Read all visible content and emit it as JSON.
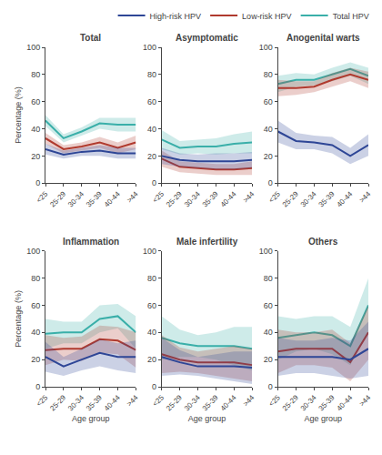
{
  "chart_data": [
    {
      "type": "line",
      "title": "Total",
      "y_label": "Percentage (%)",
      "categories": [
        "<25",
        "25-29",
        "30-34",
        "35-39",
        "40-44",
        ">44"
      ],
      "series": [
        {
          "name": "Total HPV",
          "color": "#3aafa9",
          "values": [
            46,
            33,
            38,
            44,
            43,
            43
          ],
          "lower": [
            42,
            30,
            35,
            40,
            38,
            38
          ],
          "upper": [
            50,
            36,
            41,
            48,
            48,
            48
          ]
        },
        {
          "name": "Low-risk HPV",
          "color": "#b03a2e",
          "values": [
            33,
            25,
            27,
            30,
            26,
            30
          ],
          "lower": [
            29,
            22,
            24,
            26,
            22,
            25
          ],
          "upper": [
            37,
            28,
            30,
            34,
            30,
            35
          ]
        },
        {
          "name": "High-risk HPV",
          "color": "#2e4696",
          "values": [
            25,
            21,
            23,
            24,
            22,
            22
          ],
          "lower": [
            21,
            18,
            20,
            20,
            18,
            18
          ],
          "upper": [
            29,
            24,
            26,
            28,
            26,
            26
          ]
        }
      ],
      "ylim": [
        0,
        100
      ],
      "yticks": [
        0,
        20,
        40,
        60,
        80,
        100
      ],
      "grid": false,
      "legend": "upper right"
    },
    {
      "type": "line",
      "title": "Asymptomatic",
      "categories": [
        "<25",
        "25-29",
        "30-34",
        "35-39",
        "40-44",
        ">44"
      ],
      "series": [
        {
          "name": "Total HPV",
          "color": "#3aafa9",
          "values": [
            32,
            26,
            27,
            27,
            29,
            30
          ],
          "lower": [
            25,
            21,
            22,
            21,
            22,
            22
          ],
          "upper": [
            39,
            31,
            32,
            33,
            36,
            38
          ]
        },
        {
          "name": "Low-risk HPV",
          "color": "#b03a2e",
          "values": [
            18,
            12,
            11,
            10,
            10,
            11
          ],
          "lower": [
            12,
            8,
            7,
            6,
            6,
            6
          ],
          "upper": [
            24,
            16,
            15,
            14,
            14,
            16
          ]
        },
        {
          "name": "High-risk HPV",
          "color": "#2e4696",
          "values": [
            20,
            17,
            16,
            16,
            16,
            17
          ],
          "lower": [
            14,
            12,
            11,
            10,
            10,
            11
          ],
          "upper": [
            26,
            22,
            21,
            22,
            22,
            23
          ]
        }
      ],
      "ylim": [
        0,
        100
      ],
      "yticks": [
        0,
        20,
        40,
        60,
        80,
        100
      ],
      "grid": false
    },
    {
      "type": "line",
      "title": "Anogenital warts",
      "categories": [
        "<25",
        "25-29",
        "30-34",
        "35-39",
        "40-44",
        ">44"
      ],
      "series": [
        {
          "name": "Total HPV",
          "color": "#3aafa9",
          "values": [
            73,
            76,
            76,
            80,
            84,
            79
          ],
          "lower": [
            67,
            71,
            72,
            75,
            79,
            73
          ],
          "upper": [
            79,
            81,
            80,
            85,
            89,
            85
          ]
        },
        {
          "name": "Low-risk HPV",
          "color": "#b03a2e",
          "values": [
            70,
            70,
            71,
            76,
            80,
            76
          ],
          "lower": [
            64,
            65,
            67,
            71,
            75,
            70
          ],
          "upper": [
            76,
            75,
            75,
            81,
            85,
            82
          ]
        },
        {
          "name": "High-risk HPV",
          "color": "#2e4696",
          "values": [
            38,
            31,
            30,
            28,
            20,
            28
          ],
          "lower": [
            30,
            25,
            25,
            22,
            14,
            20
          ],
          "upper": [
            46,
            37,
            35,
            34,
            26,
            36
          ]
        }
      ],
      "ylim": [
        0,
        100
      ],
      "yticks": [
        0,
        20,
        40,
        60,
        80,
        100
      ],
      "grid": false
    },
    {
      "type": "line",
      "title": "Inflammation",
      "y_label": "Percentage (%)",
      "x_label": "Age group",
      "categories": [
        "<25",
        "25-29",
        "30-34",
        "35-39",
        "40-44",
        ">44"
      ],
      "series": [
        {
          "name": "Total HPV",
          "color": "#3aafa9",
          "values": [
            39,
            40,
            40,
            50,
            52,
            40
          ],
          "lower": [
            28,
            32,
            32,
            40,
            43,
            28
          ],
          "upper": [
            50,
            48,
            48,
            60,
            61,
            52
          ]
        },
        {
          "name": "Low-risk HPV",
          "color": "#b03a2e",
          "values": [
            27,
            28,
            28,
            35,
            34,
            27
          ],
          "lower": [
            16,
            20,
            19,
            25,
            24,
            14
          ],
          "upper": [
            38,
            36,
            37,
            45,
            44,
            40
          ]
        },
        {
          "name": "High-risk HPV",
          "color": "#2e4696",
          "values": [
            22,
            15,
            20,
            25,
            22,
            22
          ],
          "lower": [
            11,
            8,
            12,
            15,
            12,
            10
          ],
          "upper": [
            33,
            22,
            28,
            35,
            32,
            34
          ]
        }
      ],
      "ylim": [
        0,
        100
      ],
      "yticks": [
        0,
        20,
        40,
        60,
        80,
        100
      ],
      "grid": false
    },
    {
      "type": "line",
      "title": "Male infertility",
      "x_label": "Age group",
      "categories": [
        "<25",
        "25-29",
        "30-34",
        "35-39",
        "40-44",
        ">44"
      ],
      "series": [
        {
          "name": "Total HPV",
          "color": "#3aafa9",
          "values": [
            36,
            32,
            30,
            30,
            30,
            28
          ],
          "lower": [
            20,
            22,
            22,
            20,
            16,
            12
          ],
          "upper": [
            52,
            42,
            38,
            40,
            44,
            44
          ]
        },
        {
          "name": "Low-risk HPV",
          "color": "#b03a2e",
          "values": [
            24,
            20,
            18,
            18,
            18,
            16
          ],
          "lower": [
            10,
            11,
            10,
            8,
            6,
            4
          ],
          "upper": [
            38,
            29,
            26,
            28,
            30,
            28
          ]
        },
        {
          "name": "High-risk HPV",
          "color": "#2e4696",
          "values": [
            22,
            18,
            15,
            15,
            15,
            14
          ],
          "lower": [
            8,
            9,
            8,
            6,
            4,
            2
          ],
          "upper": [
            36,
            27,
            22,
            24,
            26,
            26
          ]
        }
      ],
      "ylim": [
        0,
        100
      ],
      "yticks": [
        0,
        20,
        40,
        60,
        80,
        100
      ],
      "grid": false
    },
    {
      "type": "line",
      "title": "Others",
      "x_label": "Age group",
      "categories": [
        "<25",
        "25-29",
        "30-34",
        "35-39",
        "40-44",
        ">44"
      ],
      "series": [
        {
          "name": "Total HPV",
          "color": "#3aafa9",
          "values": [
            36,
            38,
            40,
            38,
            30,
            60
          ],
          "lower": [
            20,
            26,
            28,
            24,
            16,
            40
          ],
          "upper": [
            52,
            50,
            52,
            52,
            44,
            80
          ]
        },
        {
          "name": "Low-risk HPV",
          "color": "#b03a2e",
          "values": [
            26,
            28,
            28,
            28,
            18,
            40
          ],
          "lower": [
            10,
            16,
            16,
            14,
            4,
            20
          ],
          "upper": [
            42,
            40,
            40,
            42,
            32,
            60
          ]
        },
        {
          "name": "High-risk HPV",
          "color": "#2e4696",
          "values": [
            22,
            22,
            22,
            22,
            20,
            28
          ],
          "lower": [
            8,
            10,
            10,
            8,
            6,
            8
          ],
          "upper": [
            36,
            34,
            34,
            36,
            34,
            48
          ]
        }
      ],
      "ylim": [
        0,
        100
      ],
      "yticks": [
        0,
        20,
        40,
        60,
        80,
        100
      ],
      "grid": false
    }
  ]
}
